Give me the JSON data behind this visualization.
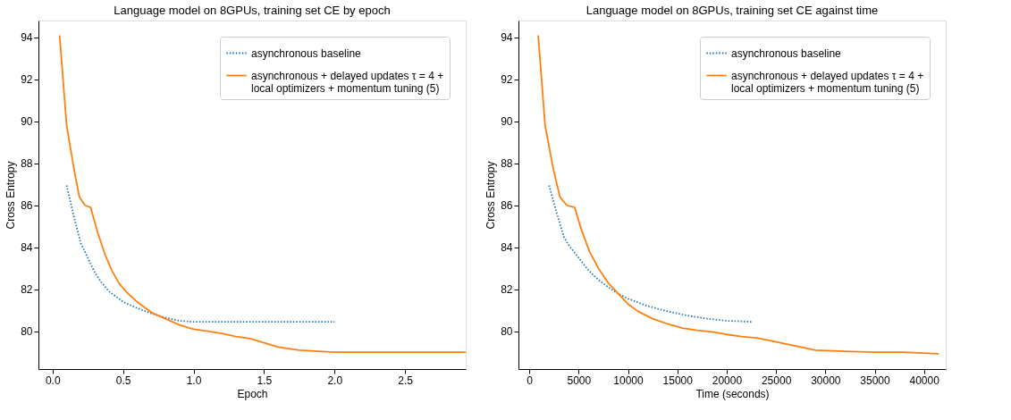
{
  "chart_data": [
    {
      "type": "line",
      "title": "Language model on 8GPUs, training set CE by epoch",
      "xlabel": "Epoch",
      "ylabel": "Cross Entropy",
      "xlim": [
        -0.1,
        2.93
      ],
      "xticks": [
        {
          "value": 0,
          "label": "0.0"
        },
        0.5,
        {
          "value": 1,
          "label": "1.0"
        },
        1.5,
        {
          "value": 2,
          "label": "2.0"
        },
        2.5
      ],
      "ylim": [
        78.2,
        94.8
      ],
      "yticks": [
        80,
        82,
        84,
        86,
        88,
        90,
        92,
        94
      ],
      "grid": false,
      "legend": "top right",
      "series": [
        {
          "name": "asynchronous baseline",
          "color": "#1f77b4",
          "line_style": "dotted",
          "x": [
            0.1,
            0.15,
            0.2,
            0.25,
            0.3,
            0.35,
            0.4,
            0.5,
            0.6,
            0.7,
            0.8,
            0.9,
            1.0,
            1.5,
            2.0
          ],
          "values": [
            86.95,
            85.5,
            84.2,
            83.5,
            82.8,
            82.3,
            81.9,
            81.4,
            81.1,
            80.85,
            80.65,
            80.5,
            80.45,
            80.45,
            80.45
          ]
        },
        {
          "name": "asynchronous + delayed updates τ = 4 + local optimizers + momentum tuning (5)",
          "color": "#ff7f0e",
          "line_style": "solid",
          "x": [
            0.05,
            0.1,
            0.15,
            0.19,
            0.23,
            0.27,
            0.32,
            0.37,
            0.42,
            0.47,
            0.52,
            0.6,
            0.7,
            0.8,
            0.9,
            1.0,
            1.1,
            1.2,
            1.3,
            1.4,
            1.5,
            1.6,
            1.75,
            2.0,
            2.5,
            2.93
          ],
          "values": [
            94.1,
            89.8,
            87.8,
            86.4,
            86.0,
            85.9,
            84.7,
            83.7,
            82.9,
            82.3,
            81.9,
            81.4,
            80.9,
            80.6,
            80.3,
            80.1,
            80.0,
            79.9,
            79.75,
            79.65,
            79.45,
            79.25,
            79.1,
            79.0,
            79.0,
            79.0
          ]
        }
      ]
    },
    {
      "type": "line",
      "title": "Language model on 8GPUs, training set CE against time",
      "xlabel": "Time (seconds)",
      "ylabel": "Cross Entropy",
      "xlim": [
        -1100,
        42200
      ],
      "xticks": [
        0,
        5000,
        10000,
        15000,
        20000,
        25000,
        30000,
        35000,
        40000
      ],
      "ylim": [
        78.2,
        94.8
      ],
      "yticks": [
        80,
        82,
        84,
        86,
        88,
        90,
        92,
        94
      ],
      "grid": false,
      "legend": "top right",
      "series": [
        {
          "name": "asynchronous baseline",
          "color": "#1f77b4",
          "line_style": "dotted",
          "x": [
            2000,
            2800,
            3500,
            4000,
            5000,
            6000,
            7000,
            8000,
            9000,
            10000,
            12000,
            14000,
            16000,
            18000,
            20000,
            22600
          ],
          "values": [
            86.95,
            85.6,
            84.5,
            84.1,
            83.5,
            82.9,
            82.45,
            82.1,
            81.8,
            81.55,
            81.2,
            80.95,
            80.75,
            80.6,
            80.5,
            80.45
          ]
        },
        {
          "name": "asynchronous + delayed updates τ = 4 + local optimizers + momentum tuning (5)",
          "color": "#ff7f0e",
          "line_style": "solid",
          "x": [
            900,
            1600,
            2400,
            3100,
            3800,
            4600,
            5300,
            6100,
            7000,
            8000,
            9000,
            10000,
            11000,
            12500,
            14000,
            15500,
            17000,
            18500,
            20000,
            21500,
            23000,
            24500,
            26000,
            27500,
            29000,
            32000,
            35000,
            38000,
            41500
          ],
          "values": [
            94.1,
            89.8,
            87.8,
            86.4,
            86.0,
            85.9,
            84.8,
            83.8,
            83.0,
            82.3,
            81.8,
            81.3,
            80.95,
            80.6,
            80.35,
            80.15,
            80.05,
            79.97,
            79.85,
            79.75,
            79.68,
            79.55,
            79.4,
            79.25,
            79.1,
            79.05,
            79.0,
            79.0,
            78.93
          ]
        }
      ]
    }
  ]
}
